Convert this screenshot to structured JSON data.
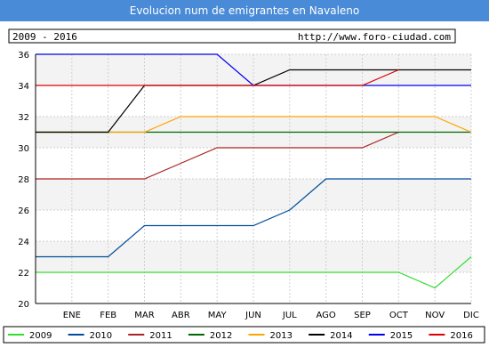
{
  "chart_data": {
    "type": "line",
    "title": "Evolucion num de emigrantes en Navaleno",
    "period_label": "2009 - 2016",
    "source_url": "http://www.foro-ciudad.com",
    "categories": [
      "ENE",
      "FEB",
      "MAR",
      "ABR",
      "MAY",
      "JUN",
      "JUL",
      "AGO",
      "SEP",
      "OCT",
      "NOV",
      "DIC"
    ],
    "ylim": [
      20,
      36
    ],
    "yticks": [
      20,
      22,
      24,
      26,
      28,
      30,
      32,
      34,
      36
    ],
    "grid": true,
    "legend_position": "bottom",
    "series": [
      {
        "name": "2009",
        "color": "#33dd33",
        "values": [
          22,
          22,
          22,
          22,
          22,
          22,
          22,
          22,
          22,
          22,
          21,
          23
        ]
      },
      {
        "name": "2010",
        "color": "#004c99",
        "values": [
          23,
          23,
          25,
          25,
          25,
          25,
          26,
          28,
          28,
          28,
          28,
          28
        ]
      },
      {
        "name": "2011",
        "color": "#aa2222",
        "values": [
          28,
          28,
          28,
          29,
          30,
          30,
          30,
          30,
          30,
          31,
          null,
          null
        ]
      },
      {
        "name": "2012",
        "color": "#006600",
        "values": [
          31,
          31,
          31,
          31,
          31,
          31,
          31,
          31,
          31,
          31,
          31,
          31
        ]
      },
      {
        "name": "2013",
        "color": "#ffa500",
        "values": [
          31,
          31,
          31,
          32,
          32,
          32,
          32,
          32,
          32,
          32,
          32,
          31
        ]
      },
      {
        "name": "2014",
        "color": "#000000",
        "values": [
          31,
          31,
          34,
          34,
          34,
          34,
          35,
          35,
          35,
          35,
          35,
          35
        ]
      },
      {
        "name": "2015",
        "color": "#0000ee",
        "values": [
          36,
          36,
          36,
          36,
          36,
          34,
          34,
          34,
          34,
          34,
          34,
          34
        ]
      },
      {
        "name": "2016",
        "color": "#dd0000",
        "values": [
          34,
          34,
          34,
          34,
          34,
          34,
          34,
          34,
          34,
          35,
          null,
          null
        ]
      }
    ]
  }
}
